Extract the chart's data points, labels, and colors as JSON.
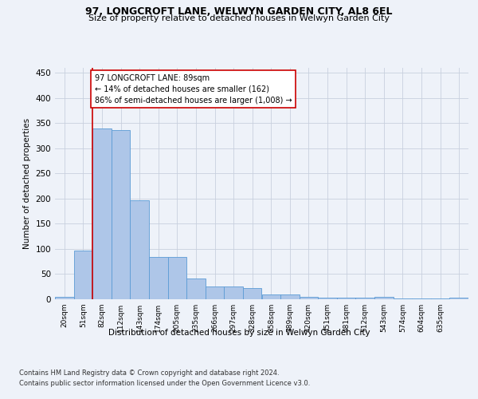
{
  "title1": "97, LONGCROFT LANE, WELWYN GARDEN CITY, AL8 6EL",
  "title2": "Size of property relative to detached houses in Welwyn Garden City",
  "xlabel": "Distribution of detached houses by size in Welwyn Garden City",
  "ylabel": "Number of detached properties",
  "bar_values": [
    5,
    97,
    340,
    337,
    197,
    84,
    84,
    42,
    25,
    25,
    22,
    9,
    10,
    5,
    3,
    3,
    3,
    5,
    1,
    1,
    1,
    3
  ],
  "x_labels": [
    "20sqm",
    "51sqm",
    "82sqm",
    "112sqm",
    "143sqm",
    "174sqm",
    "205sqm",
    "235sqm",
    "266sqm",
    "297sqm",
    "328sqm",
    "358sqm",
    "389sqm",
    "420sqm",
    "451sqm",
    "481sqm",
    "512sqm",
    "543sqm",
    "574sqm",
    "604sqm",
    "635sqm",
    ""
  ],
  "bar_color": "#aec6e8",
  "bar_edge_color": "#5b9bd5",
  "vline_x": 1.5,
  "vline_color": "#cc0000",
  "annotation_text": "97 LONGCROFT LANE: 89sqm\n← 14% of detached houses are smaller (162)\n86% of semi-detached houses are larger (1,008) →",
  "annotation_box_color": "#ffffff",
  "annotation_box_edge": "#cc0000",
  "ylim": [
    0,
    460
  ],
  "yticks": [
    0,
    50,
    100,
    150,
    200,
    250,
    300,
    350,
    400,
    450
  ],
  "footer1": "Contains HM Land Registry data © Crown copyright and database right 2024.",
  "footer2": "Contains public sector information licensed under the Open Government Licence v3.0.",
  "bg_color": "#eef2f9",
  "plot_bg_color": "#eef2f9"
}
